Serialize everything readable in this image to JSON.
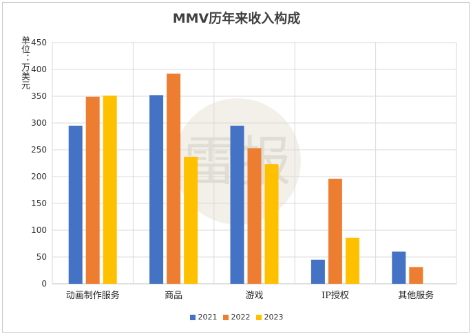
{
  "chart_data": {
    "type": "bar",
    "title": "MMV历年来收入构成",
    "ylabel": "单位：万美元",
    "xlabel": "",
    "ylim": [
      0,
      450
    ],
    "yticks": [
      0,
      50,
      100,
      150,
      200,
      250,
      300,
      350,
      400,
      450
    ],
    "grid": true,
    "legend_position": "bottom",
    "categories": [
      "动画制作服务",
      "商品",
      "游戏",
      "IP授权",
      "其他服务"
    ],
    "series": [
      {
        "name": "2021",
        "color": "#4472C4",
        "values": [
          295,
          352,
          295,
          45,
          60
        ]
      },
      {
        "name": "2022",
        "color": "#ED7D31",
        "values": [
          349,
          392,
          253,
          196,
          31
        ]
      },
      {
        "name": "2023",
        "color": "#FFC000",
        "values": [
          351,
          237,
          223,
          86,
          null
        ]
      }
    ]
  },
  "watermark_text": "雷报"
}
